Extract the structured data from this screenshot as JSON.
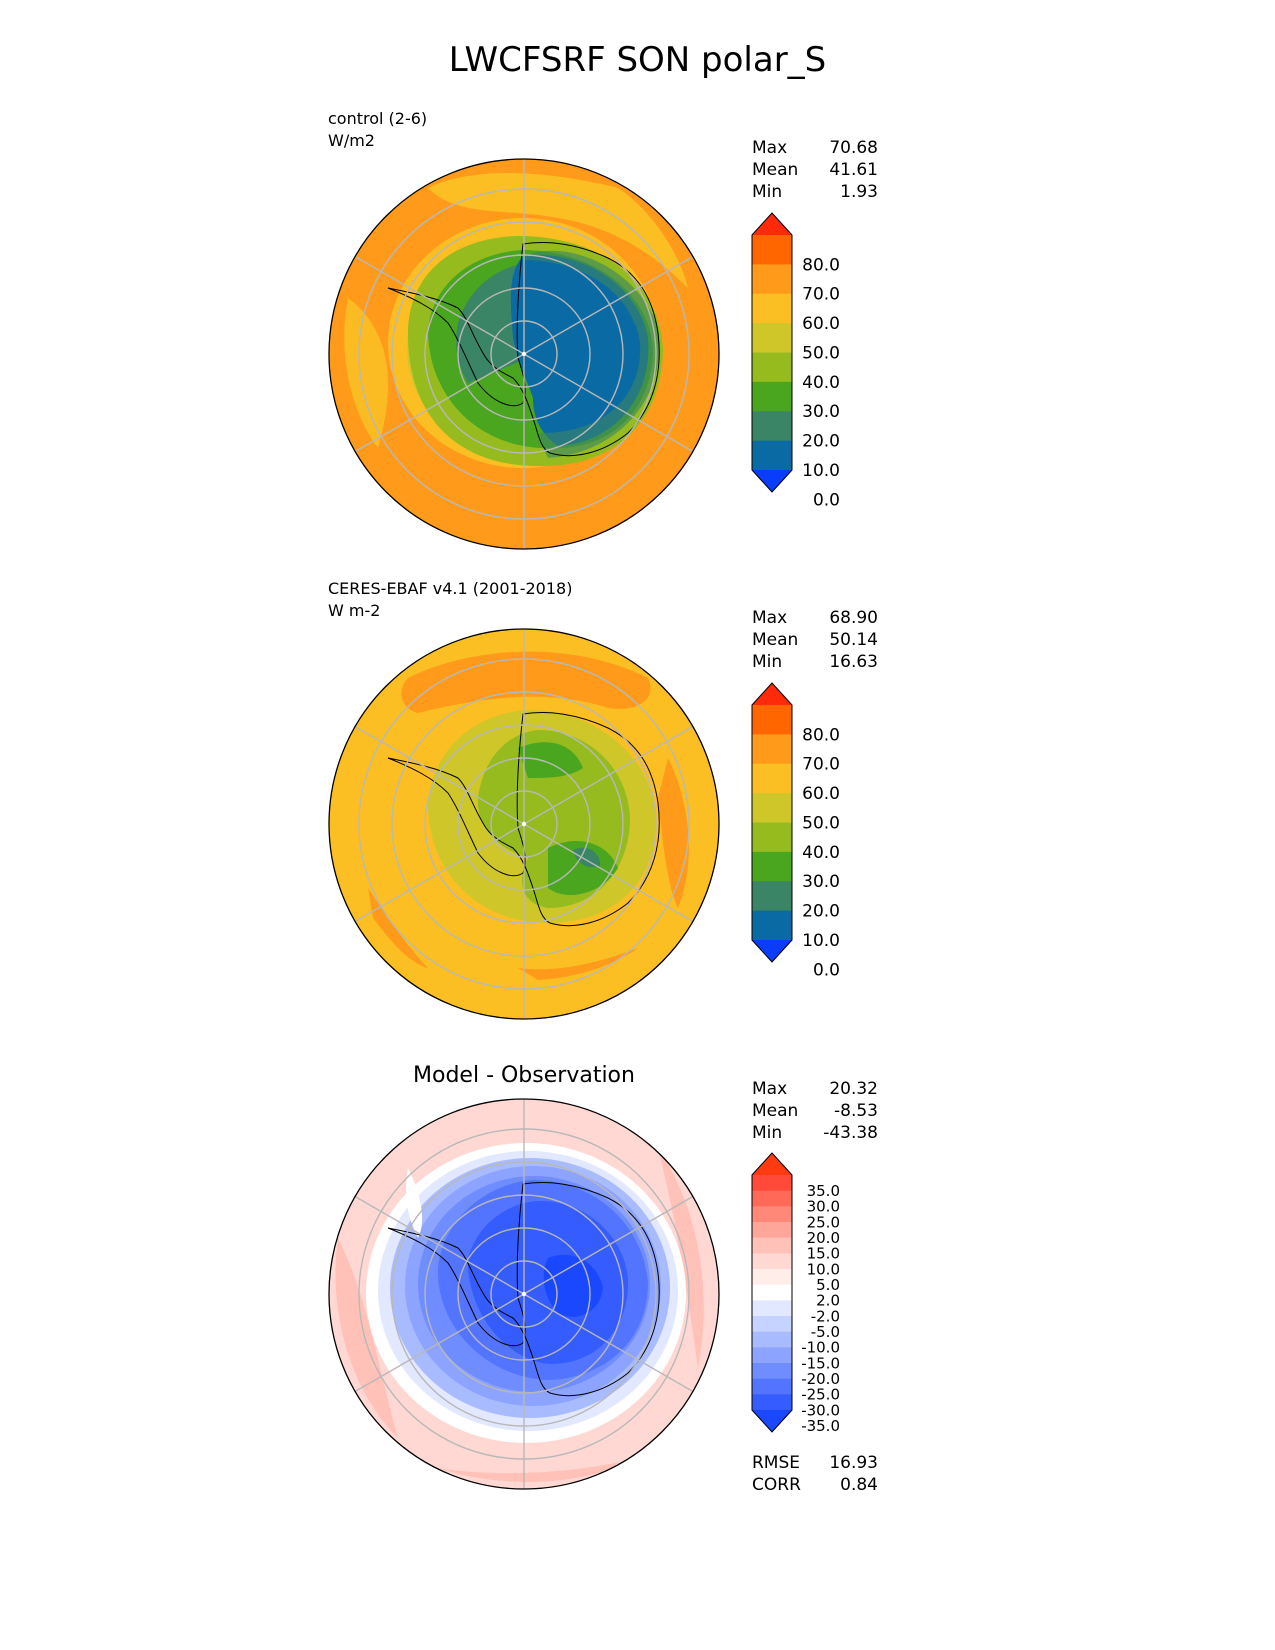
{
  "title": "LWCFSRF SON polar_S",
  "panels": [
    {
      "title_line1": "control (2-6)",
      "title_line2": "W/m2",
      "stats": [
        {
          "label": "Max",
          "value": "70.68"
        },
        {
          "label": "Mean",
          "value": "41.61"
        },
        {
          "label": "Min",
          "value": "1.93"
        }
      ]
    },
    {
      "title_line1": "CERES-EBAF v4.1 (2001-2018)",
      "title_line2": "W m-2",
      "stats": [
        {
          "label": "Max",
          "value": "68.90"
        },
        {
          "label": "Mean",
          "value": "50.14"
        },
        {
          "label": "Min",
          "value": "16.63"
        }
      ]
    },
    {
      "title": "Model - Observation",
      "stats": [
        {
          "label": "Max",
          "value": "20.32"
        },
        {
          "label": "Mean",
          "value": "-8.53"
        },
        {
          "label": "Min",
          "value": "-43.38"
        }
      ],
      "metrics": [
        {
          "label": "RMSE",
          "value": "16.93"
        },
        {
          "label": "CORR",
          "value": "0.84"
        }
      ]
    }
  ],
  "colorbars": {
    "field": {
      "ticks": [
        "80.0",
        "70.0",
        "60.0",
        "50.0",
        "40.0",
        "30.0",
        "20.0",
        "10.0",
        "0.0"
      ],
      "colors": [
        "#ff2a0a",
        "#ff6600",
        "#ff9a1a",
        "#fbbf24",
        "#cfc72a",
        "#95bb1e",
        "#4aa51f",
        "#3a8565",
        "#0a6aa3",
        "#0a3dfa"
      ]
    },
    "diff": {
      "ticks": [
        "35.0",
        "30.0",
        "25.0",
        "20.0",
        "15.0",
        "10.0",
        "5.0",
        "2.0",
        "-2.0",
        "-5.0",
        "-10.0",
        "-15.0",
        "-20.0",
        "-25.0",
        "-30.0",
        "-35.0"
      ],
      "colors": [
        "#ff3a10",
        "#ff4a3a",
        "#ff6a58",
        "#ff8878",
        "#ffa69a",
        "#ffc1b8",
        "#ffd8d3",
        "#ffedea",
        "#ffffff",
        "#e2e8ff",
        "#c6d2ff",
        "#a9bbff",
        "#8ca4ff",
        "#6f8dff",
        "#5274ff",
        "#345cff",
        "#1a48ff"
      ]
    }
  },
  "chart_data": [
    {
      "type": "heatmap",
      "projection": "south-polar-stereographic",
      "title": "control (2-6)",
      "units": "W/m2",
      "stats": {
        "max": 70.68,
        "mean": 41.61,
        "min": 1.93
      },
      "levels": [
        0,
        10,
        20,
        30,
        40,
        50,
        60,
        70,
        80
      ],
      "grid": true
    },
    {
      "type": "heatmap",
      "projection": "south-polar-stereographic",
      "title": "CERES-EBAF v4.1 (2001-2018)",
      "units": "W m-2",
      "stats": {
        "max": 68.9,
        "mean": 50.14,
        "min": 16.63
      },
      "levels": [
        0,
        10,
        20,
        30,
        40,
        50,
        60,
        70,
        80
      ],
      "grid": true
    },
    {
      "type": "heatmap",
      "projection": "south-polar-stereographic",
      "title": "Model - Observation",
      "stats": {
        "max": 20.32,
        "mean": -8.53,
        "min": -43.38,
        "rmse": 16.93,
        "corr": 0.84
      },
      "levels": [
        -35,
        -30,
        -25,
        -20,
        -15,
        -10,
        -5,
        -2,
        2,
        5,
        10,
        15,
        20,
        25,
        30,
        35
      ],
      "grid": true
    }
  ]
}
